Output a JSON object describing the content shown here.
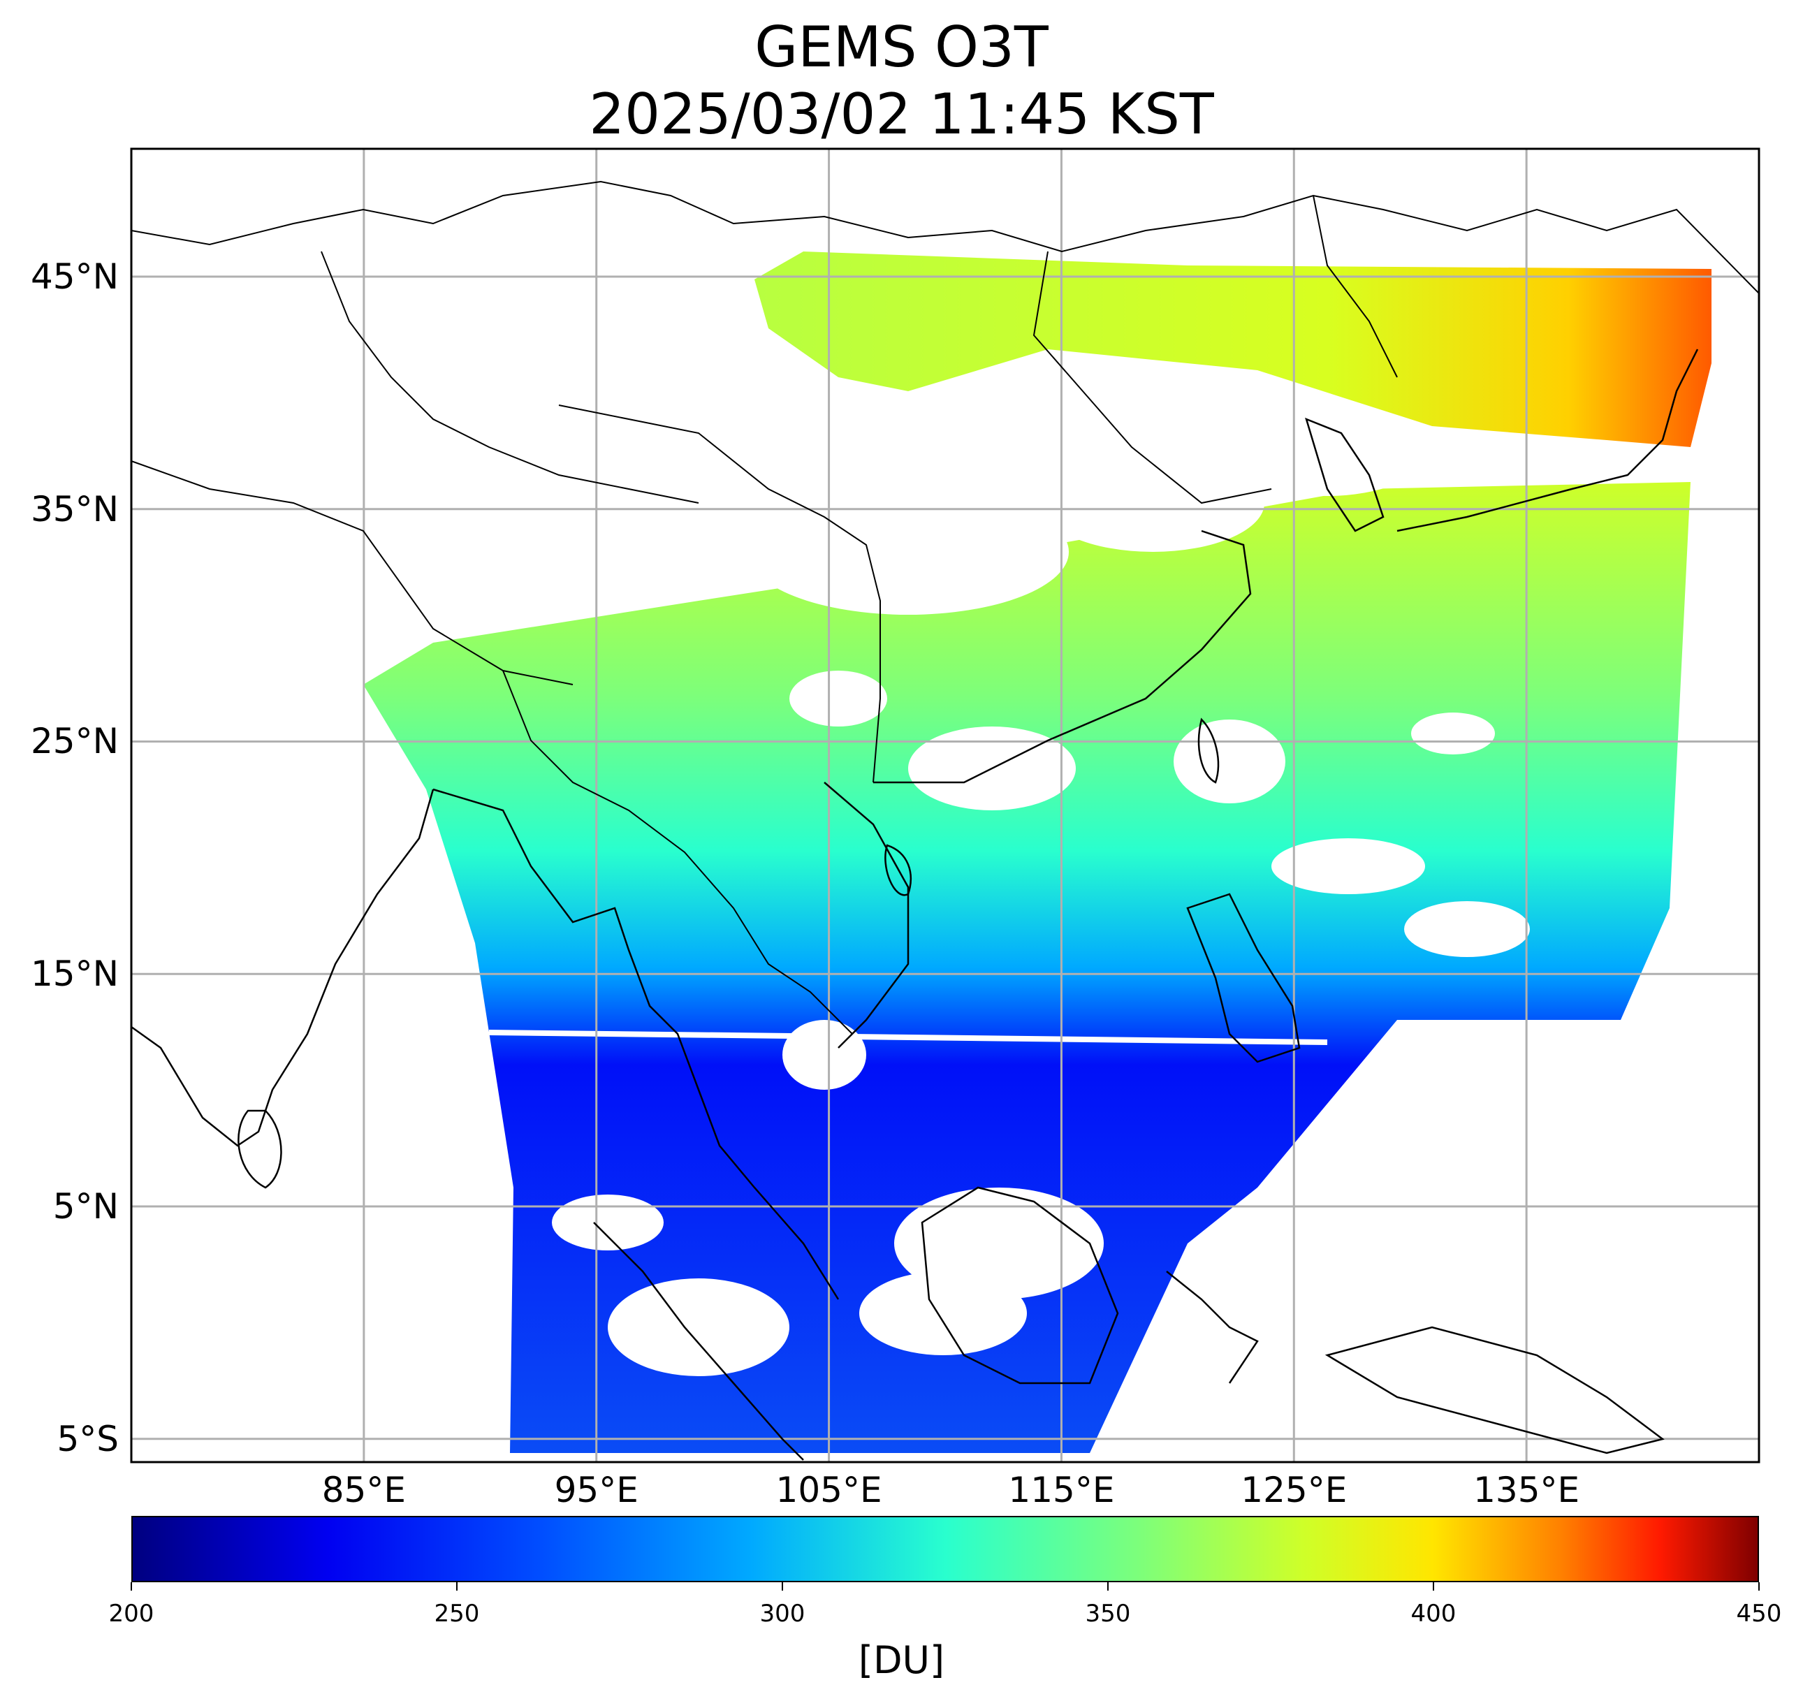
{
  "title": {
    "line1": "GEMS O3T",
    "line2": "2025/03/02 11:45 KST"
  },
  "map": {
    "lat_ticks": [
      "45°N",
      "35°N",
      "25°N",
      "15°N",
      "5°N",
      "5°S"
    ],
    "lon_ticks": [
      "85°E",
      "95°E",
      "105°E",
      "115°E",
      "125°E",
      "135°E"
    ],
    "lon_range": [
      75,
      145
    ],
    "lat_range": [
      -6,
      50.5
    ],
    "grid": true
  },
  "colorbar": {
    "labels": [
      "200",
      "250",
      "300",
      "350",
      "400",
      "450"
    ],
    "min": 200,
    "max": 450,
    "unit": "[DU]",
    "colormap": "jet"
  }
}
